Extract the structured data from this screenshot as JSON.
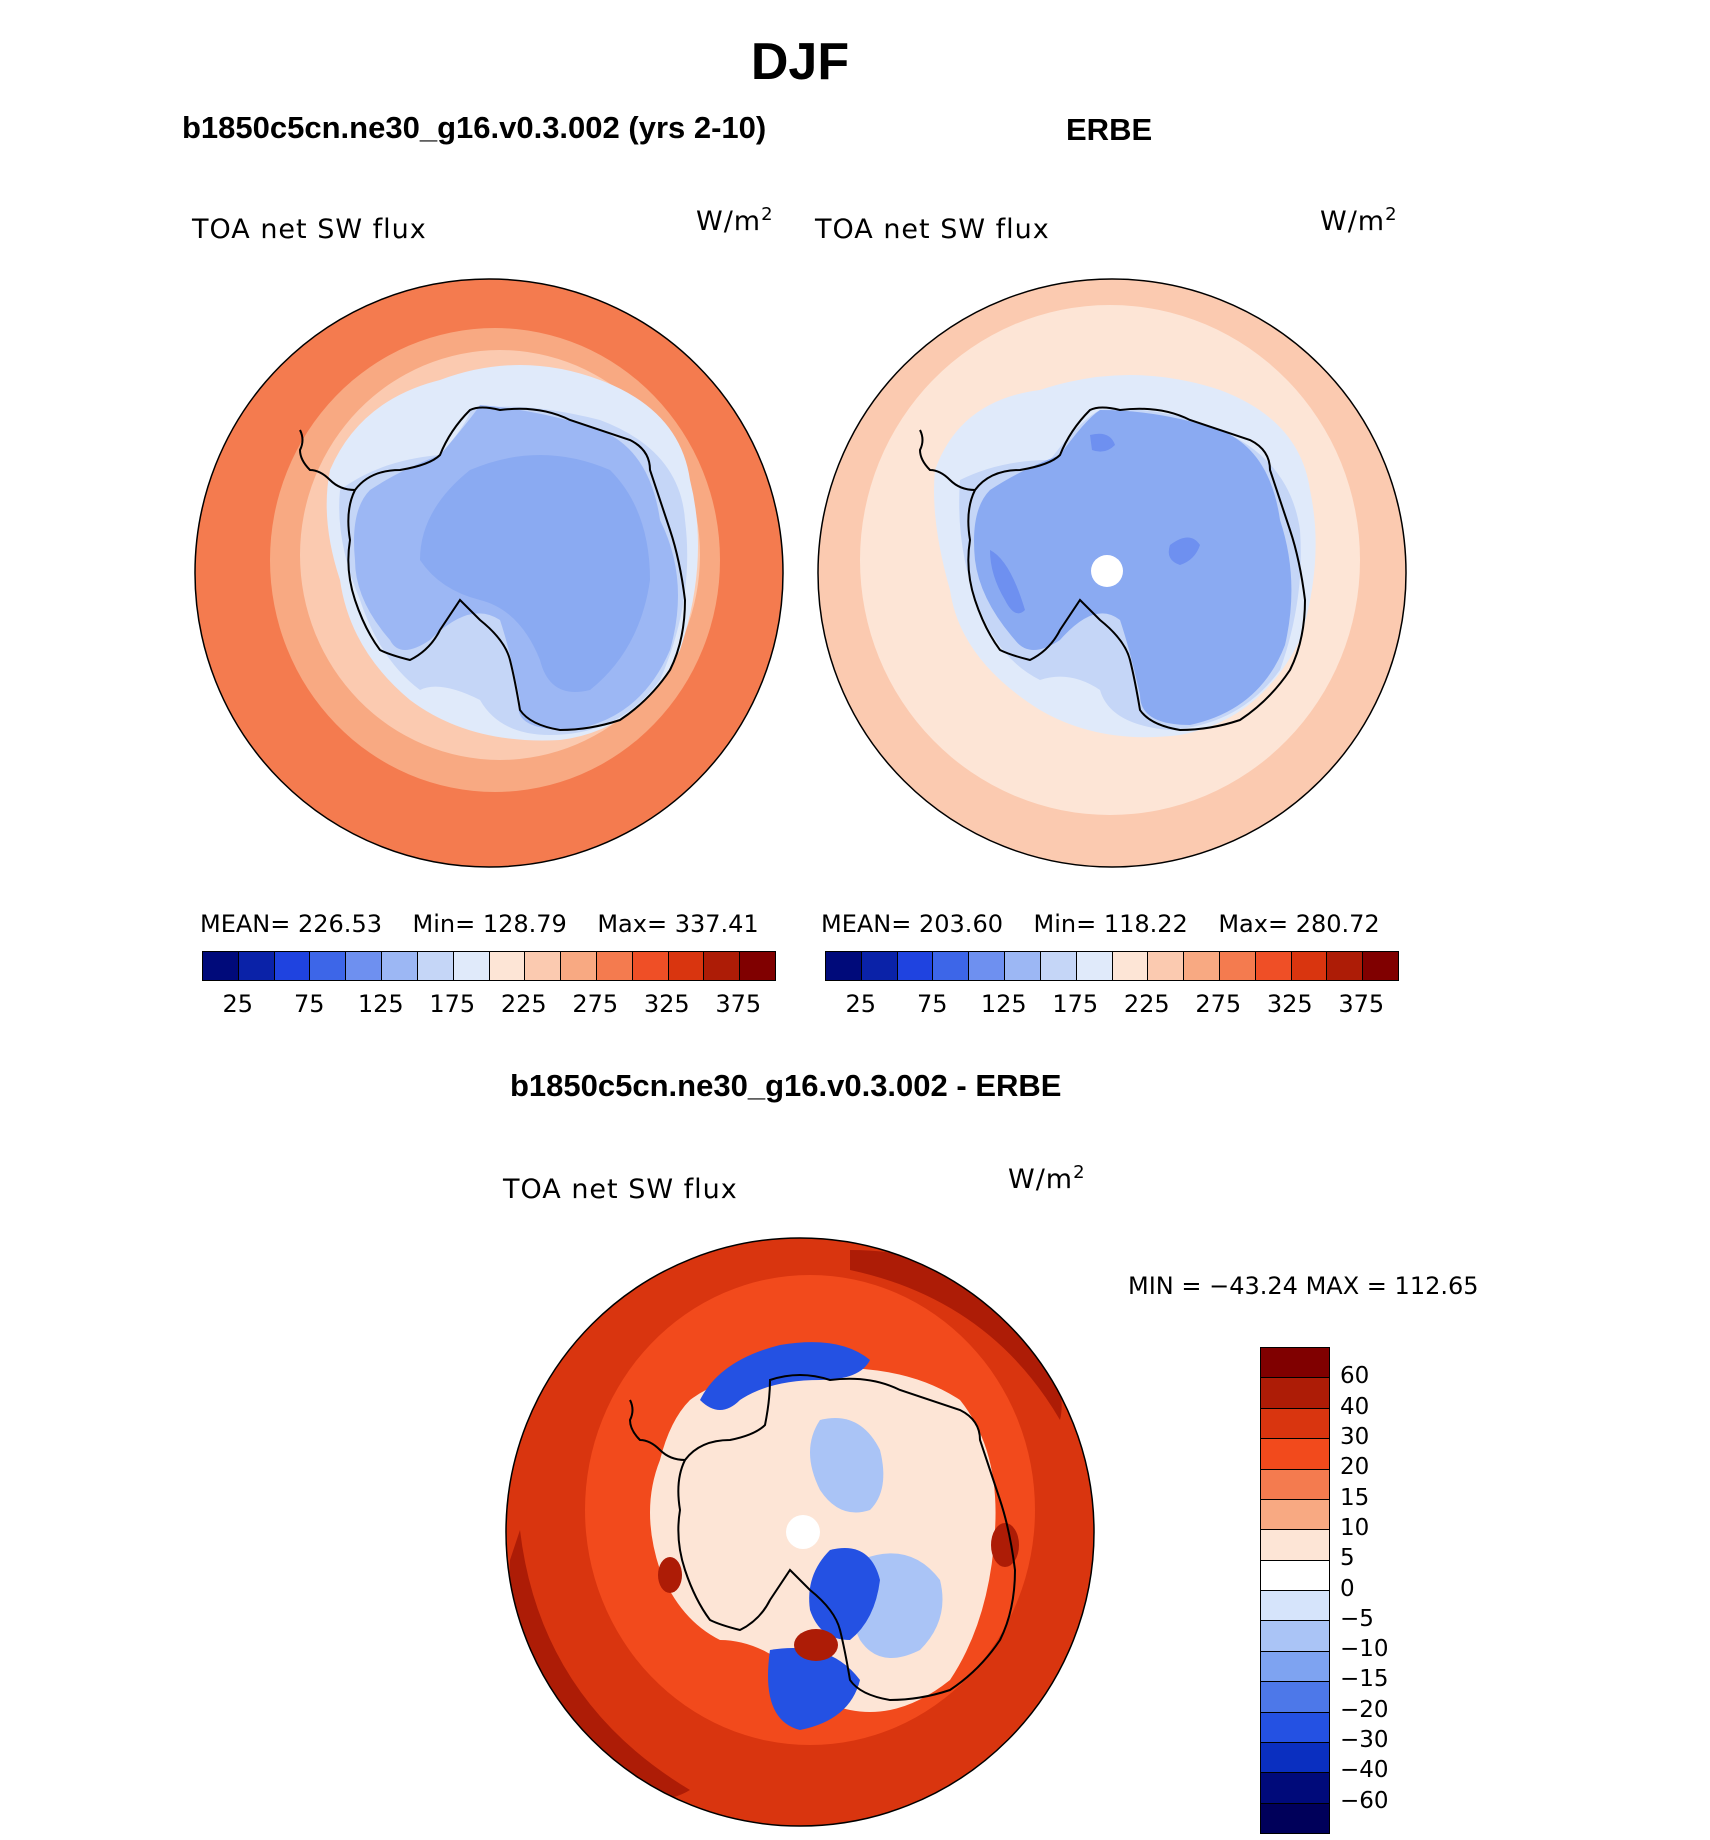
{
  "figure": {
    "title": "DJF",
    "panel_model_title": "b1850c5cn.ne30_g16.v0.3.002 (yrs 2-10)",
    "panel_obs_title": "ERBE",
    "panel_diff_title": "b1850c5cn.ne30_g16.v0.3.002 - ERBE",
    "variable_label": "TOA net SW flux",
    "unit_base": "W/m",
    "unit_exp": "2"
  },
  "chart_data": [
    {
      "type": "heatmap",
      "projection": "south-polar-stereographic",
      "title": "b1850c5cn.ne30_g16.v0.3.002 (yrs 2-10)",
      "label": "TOA net SW flux",
      "units": "W/m2",
      "stats": {
        "mean_label": "MEAN=",
        "mean": "226.53",
        "min_label": "Min=",
        "min": "128.79",
        "max_label": "Max=",
        "max": "337.41"
      },
      "colorbar_ticks": [
        "25",
        "75",
        "125",
        "175",
        "225",
        "275",
        "325",
        "375"
      ],
      "colorbar_colors": [
        "#000a7a",
        "#0a22a8",
        "#1f43e0",
        "#3d66e8",
        "#6e90f0",
        "#9cb7f4",
        "#c5d6f7",
        "#e0eafa",
        "#fde5d6",
        "#fbcab0",
        "#f8a982",
        "#f47b4f",
        "#ef4f26",
        "#d9350f",
        "#ad1c06",
        "#800000"
      ],
      "regions": {
        "outer_ocean": "#f47b4f",
        "mid_ring": "#f8a982",
        "inner_ring": "#fbcab0",
        "sea_ice": "#e0eafa",
        "sea_ice_2": "#c5d6f7",
        "ice_sheet": "#9cb7f4",
        "ice_sheet_interior": "#8aaaf2"
      }
    },
    {
      "type": "heatmap",
      "projection": "south-polar-stereographic",
      "title": "ERBE",
      "label": "TOA net SW flux",
      "units": "W/m2",
      "stats": {
        "mean_label": "MEAN=",
        "mean": "203.60",
        "min_label": "Min=",
        "min": "118.22",
        "max_label": "Max=",
        "max": "280.72"
      },
      "colorbar_ticks": [
        "25",
        "75",
        "125",
        "175",
        "225",
        "275",
        "325",
        "375"
      ],
      "colorbar_colors": [
        "#000a7a",
        "#0a22a8",
        "#1f43e0",
        "#3d66e8",
        "#6e90f0",
        "#9cb7f4",
        "#c5d6f7",
        "#e0eafa",
        "#fde5d6",
        "#fbcab0",
        "#f8a982",
        "#f47b4f",
        "#ef4f26",
        "#d9350f",
        "#ad1c06",
        "#800000"
      ],
      "regions": {
        "outer_ocean": "#fbcab0",
        "mid_ring": "#fde5d6",
        "sea_ice": "#e0eafa",
        "sea_ice_2": "#c5d6f7",
        "ice_sheet": "#8aaaf2",
        "ice_sheet_dark": "#6e90f0",
        "pole_hole": "#ffffff"
      }
    },
    {
      "type": "heatmap",
      "projection": "south-polar-stereographic",
      "title": "b1850c5cn.ne30_g16.v0.3.002 - ERBE",
      "label": "TOA net SW flux",
      "units": "W/m2",
      "stats": {
        "min_label": "MIN =",
        "min": "−43.24",
        "max_label": "MAX =",
        "max": "112.65"
      },
      "colorbar_ticks": [
        "60",
        "40",
        "30",
        "20",
        "15",
        "10",
        "5",
        "0",
        "−5",
        "−10",
        "−15",
        "−20",
        "−30",
        "−40",
        "−60"
      ],
      "colorbar_colors": [
        "#800000",
        "#ad1c06",
        "#d9350f",
        "#f24a1c",
        "#f47b4f",
        "#f8a982",
        "#fde5d6",
        "#ffffff",
        "#d6e4fb",
        "#aac4f6",
        "#7ea3f1",
        "#4d78e9",
        "#2451e3",
        "#0a2fc0",
        "#000a7a",
        "#00005a"
      ],
      "regions": {
        "outer_ocean": "#d9350f",
        "outer_band": "#ad1c06",
        "ring": "#f24a1c",
        "land_mix": "#fde5d6",
        "neg_patch": "#2451e3",
        "neg_light": "#aac4f6"
      }
    }
  ]
}
